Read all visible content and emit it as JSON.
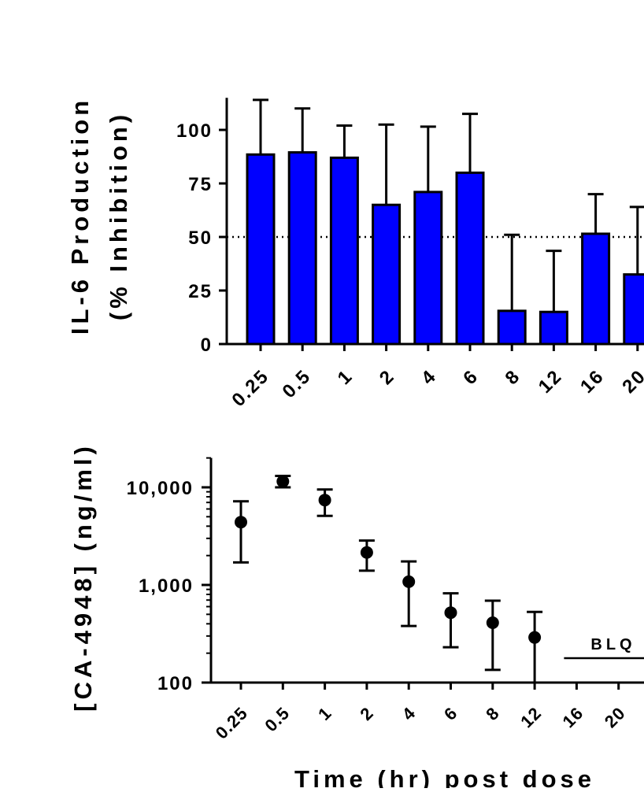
{
  "chart_data": [
    {
      "type": "bar",
      "ylabel_line1": "IL-6 Production",
      "ylabel_line2": "(% Inhibition)",
      "categories": [
        "0.25",
        "0.5",
        "1",
        "2",
        "4",
        "6",
        "8",
        "12",
        "16",
        "20"
      ],
      "values": [
        88.5,
        89.5,
        87,
        65,
        71,
        80,
        15.5,
        15,
        51.5,
        32.5
      ],
      "error_upper": [
        114,
        110,
        102,
        102.5,
        101.5,
        107.5,
        51,
        43.5,
        70,
        64
      ],
      "ylim": [
        0,
        115
      ],
      "yticks": [
        0,
        25,
        50,
        75,
        100
      ],
      "ytick_labels": [
        "0",
        "25",
        "50",
        "75",
        "100"
      ],
      "reference_line": 50,
      "bar_color": "#0000ff"
    },
    {
      "type": "scatter",
      "ylabel": "[CA-4948] (ng/ml)",
      "xlabel": "Time (hr) post dose",
      "categories": [
        "0.25",
        "0.5",
        "1",
        "2",
        "4",
        "6",
        "8",
        "12",
        "16",
        "20"
      ],
      "x_tick_labels_visible": [
        "0.25",
        "0.5",
        "1",
        "2",
        "4",
        "6",
        "8",
        "12",
        "16",
        "20"
      ],
      "values": [
        4400,
        11500,
        7400,
        2150,
        1080,
        520,
        410,
        290,
        null,
        null
      ],
      "error_low": [
        1700,
        10000,
        5100,
        1400,
        380,
        230,
        135,
        100,
        null,
        null
      ],
      "error_high": [
        7200,
        13100,
        9500,
        2850,
        1740,
        820,
        690,
        530,
        null,
        null
      ],
      "yscale": "log",
      "ylim": [
        100,
        20000
      ],
      "yticks": [
        100,
        1000,
        10000
      ],
      "ytick_labels": [
        "100",
        "1,000",
        "10,000"
      ],
      "annotation": "BLQ",
      "marker_color": "#000000"
    }
  ]
}
